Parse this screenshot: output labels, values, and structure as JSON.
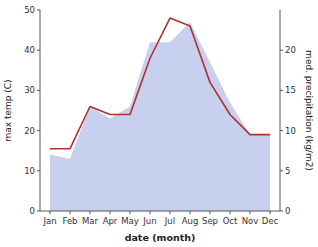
{
  "chart_data": {
    "type": "line",
    "categories": [
      "Jan",
      "Feb",
      "Mar",
      "Apr",
      "May",
      "Jun",
      "Jul",
      "Aug",
      "Sep",
      "Oct",
      "Nov",
      "Dec"
    ],
    "series": [
      {
        "type": "area",
        "color": "#c8d0f0",
        "axis": "y2",
        "values": [
          7.0,
          6.5,
          13.0,
          11.5,
          13.0,
          21.0,
          21.0,
          23.5,
          18.5,
          13.5,
          9.5,
          9.5
        ]
      },
      {
        "type": "line",
        "color": "#b03030",
        "values": [
          15.5,
          15.5,
          26.0,
          24.0,
          24.0,
          38.0,
          48.0,
          46.0,
          32.0,
          24.0,
          19.0,
          19.0
        ]
      }
    ],
    "xlabel": "date (month)",
    "ylabel": "max temp (C)",
    "y2label": "med. precipitation (kg/m2)",
    "ylim": [
      0,
      50
    ],
    "yticks": [
      0,
      10,
      20,
      30,
      40,
      50
    ],
    "y2lim": [
      0,
      25
    ],
    "y2ticks": [
      0,
      5,
      10,
      15,
      20
    ],
    "grid": false
  }
}
